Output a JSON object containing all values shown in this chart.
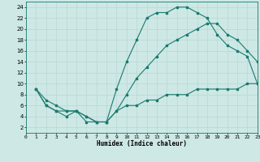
{
  "line1_x": [
    1,
    2,
    3,
    4,
    5,
    6,
    7,
    8,
    9,
    10,
    11,
    12,
    13,
    14,
    15,
    16,
    17,
    18,
    19,
    20,
    21,
    22,
    23
  ],
  "line1_y": [
    9,
    7,
    6,
    5,
    5,
    3,
    3,
    3,
    9,
    14,
    18,
    22,
    23,
    23,
    24,
    24,
    23,
    22,
    19,
    17,
    16,
    15,
    10
  ],
  "line2_x": [
    1,
    2,
    3,
    4,
    5,
    6,
    7,
    8,
    9,
    10,
    11,
    12,
    13,
    14,
    15,
    16,
    17,
    18,
    19,
    20,
    21,
    22,
    23
  ],
  "line2_y": [
    9,
    6,
    5,
    5,
    5,
    4,
    3,
    3,
    5,
    8,
    11,
    13,
    15,
    17,
    18,
    19,
    20,
    21,
    21,
    19,
    18,
    16,
    14
  ],
  "line3_x": [
    1,
    2,
    3,
    4,
    5,
    6,
    7,
    8,
    9,
    10,
    11,
    12,
    13,
    14,
    15,
    16,
    17,
    18,
    19,
    20,
    21,
    22,
    23
  ],
  "line3_y": [
    9,
    6,
    5,
    4,
    5,
    4,
    3,
    3,
    5,
    6,
    6,
    7,
    7,
    8,
    8,
    8,
    9,
    9,
    9,
    9,
    9,
    10,
    10
  ],
  "line_color": "#1a7a6e",
  "bg_color": "#cde8e5",
  "grid_major_color": "#b8d8d4",
  "grid_minor_color": "#d0e8e4",
  "xlabel": "Humidex (Indice chaleur)",
  "xlim": [
    0,
    23
  ],
  "ylim": [
    1,
    25
  ],
  "xticks": [
    0,
    1,
    2,
    3,
    4,
    5,
    6,
    7,
    8,
    9,
    10,
    11,
    12,
    13,
    14,
    15,
    16,
    17,
    18,
    19,
    20,
    21,
    22,
    23
  ],
  "yticks": [
    2,
    4,
    6,
    8,
    10,
    12,
    14,
    16,
    18,
    20,
    22,
    24
  ]
}
